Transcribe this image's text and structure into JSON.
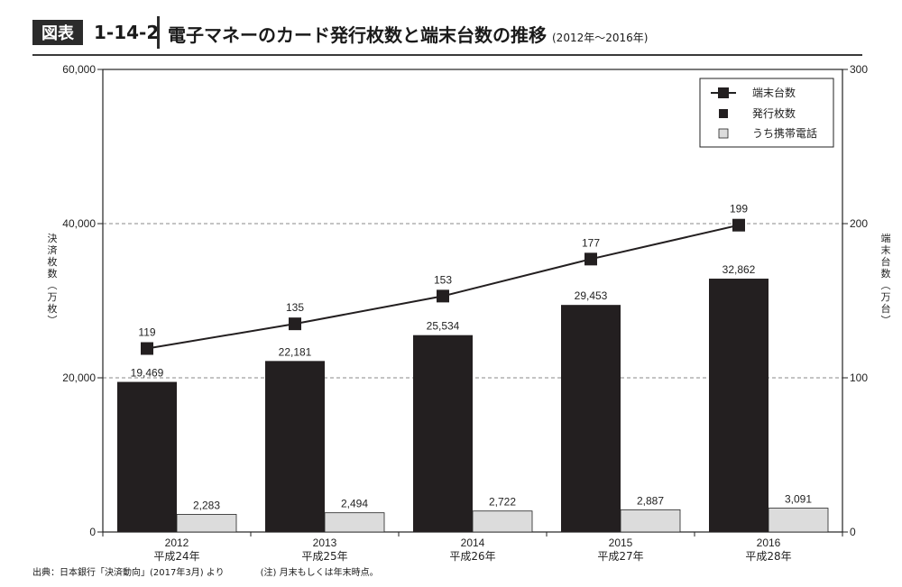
{
  "figure": {
    "tag": "図表",
    "number": "1-14-2",
    "title": "電子マネーのカード発行枚数と端末台数の推移",
    "period": "(2012年〜2016年)"
  },
  "footer": {
    "source": "出典：日本銀行「決済動向」(2017年3月) より",
    "note": "(注) 月末もしくは年末時点。"
  },
  "chart_data": {
    "type": "bar",
    "categories": [
      "2012\n平成24年",
      "2013\n平成25年",
      "2014\n平成26年",
      "2015\n平成27年",
      "2016\n平成28年"
    ],
    "ylabel": "決済枚数(万枚)",
    "y2label": "端末台数(万台)",
    "ylim": [
      0,
      60000
    ],
    "y2lim": [
      0,
      300
    ],
    "yticks": [
      "0",
      "20,000",
      "40,000",
      "60,000"
    ],
    "y2ticks": [
      "0",
      "100",
      "200",
      "300"
    ],
    "grid": "dashed at 20,000 and 40,000",
    "legend_position": "top-right",
    "series": [
      {
        "name": "発行枚数",
        "type": "bar",
        "axis": "left",
        "color": "#231f20",
        "values": [
          19469,
          22181,
          25534,
          29453,
          32862
        ],
        "labels": [
          "19,469",
          "22,181",
          "25,534",
          "29,453",
          "32,862"
        ]
      },
      {
        "name": "うち携帯電話",
        "type": "bar",
        "axis": "left",
        "color": "#dcdcdc",
        "values": [
          2283,
          2494,
          2722,
          2887,
          3091
        ],
        "labels": [
          "2,283",
          "2,494",
          "2,722",
          "2,887",
          "3,091"
        ]
      },
      {
        "name": "端末台数",
        "type": "line",
        "axis": "right",
        "color": "#231f20",
        "values": [
          119,
          135,
          153,
          177,
          199
        ],
        "labels": [
          "119",
          "135",
          "153",
          "177",
          "199"
        ]
      }
    ],
    "legend": [
      "端末台数",
      "発行枚数",
      "うち携帯電話"
    ]
  }
}
